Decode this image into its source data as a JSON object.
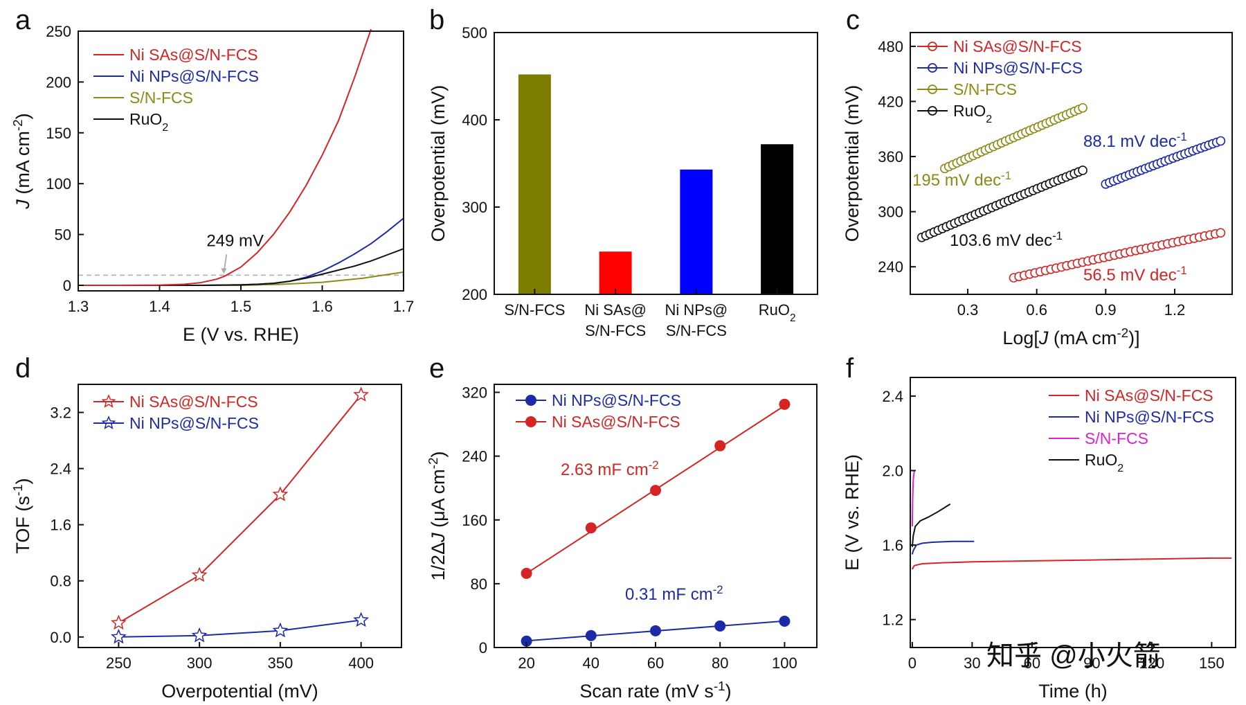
{
  "watermark": "知乎 @小火箭",
  "colors": {
    "red": "#d42424",
    "blue": "#1c2aa8",
    "olive": "#8c8a14",
    "black": "#111111",
    "magenta": "#e020d0",
    "gray": "#aaaaaa",
    "bar_olive": "#7c7c00",
    "bar_red": "#ff0000",
    "bar_blue": "#0000ff",
    "bar_black": "#000000"
  },
  "chart_data": [
    {
      "panel": "a",
      "type": "line",
      "xlabel": "E (V vs. RHE)",
      "ylabel": "J (mA cm-2)",
      "xlim": [
        1.3,
        1.7
      ],
      "ylim": [
        0,
        250
      ],
      "xticks": [
        1.3,
        1.4,
        1.5,
        1.6,
        1.7
      ],
      "yticks": [
        0,
        50,
        100,
        150,
        200,
        250
      ],
      "legend": "top-left",
      "annotation": {
        "text": "249 mV",
        "x": 1.479,
        "y": 10
      },
      "reference_line": {
        "y": 10,
        "style": "dashed"
      },
      "series": [
        {
          "name": "Ni SAs@S/N-FCS",
          "color": "red",
          "x": [
            1.3,
            1.35,
            1.4,
            1.43,
            1.45,
            1.47,
            1.48,
            1.5,
            1.52,
            1.54,
            1.56,
            1.58,
            1.6,
            1.62,
            1.64,
            1.66
          ],
          "y": [
            0,
            0,
            0.3,
            1,
            2.5,
            6,
            9,
            18,
            32,
            50,
            72,
            98,
            128,
            162,
            205,
            252
          ]
        },
        {
          "name": "Ni NPs@S/N-FCS",
          "color": "blue",
          "x": [
            1.3,
            1.45,
            1.5,
            1.52,
            1.54,
            1.56,
            1.58,
            1.6,
            1.62,
            1.64,
            1.66,
            1.68,
            1.7
          ],
          "y": [
            0,
            0,
            0.5,
            1,
            2,
            4,
            8,
            14,
            22,
            31,
            41,
            53,
            66
          ]
        },
        {
          "name": "S/N-FCS",
          "color": "olive",
          "x": [
            1.3,
            1.5,
            1.55,
            1.6,
            1.65,
            1.7
          ],
          "y": [
            0,
            0,
            1,
            3,
            7,
            13
          ]
        },
        {
          "name": "RuO2",
          "color": "black",
          "x": [
            1.3,
            1.45,
            1.5,
            1.52,
            1.54,
            1.56,
            1.58,
            1.6,
            1.62,
            1.64,
            1.66,
            1.68,
            1.7
          ],
          "y": [
            0,
            0,
            0.5,
            1,
            2,
            4,
            7,
            11,
            15,
            19,
            24,
            30,
            36
          ]
        }
      ]
    },
    {
      "panel": "b",
      "type": "bar",
      "ylabel": "Overpotential (mV)",
      "ylim": [
        200,
        500
      ],
      "yticks": [
        200,
        300,
        400,
        500
      ],
      "categories": [
        "S/N-FCS",
        "Ni SAs@\nS/N-FCS",
        "Ni NPs@\nS/N-FCS",
        "RuO2"
      ],
      "values": [
        452,
        249,
        343,
        372
      ],
      "bar_colors": [
        "bar_olive",
        "bar_red",
        "bar_blue",
        "bar_black"
      ]
    },
    {
      "panel": "c",
      "type": "scatter",
      "xlabel": "Log[J (mA cm-2)]",
      "ylabel": "Overpotential (mV)",
      "xlim": [
        0.05,
        1.45
      ],
      "ylim": [
        210,
        495
      ],
      "xticks": [
        0.3,
        0.6,
        0.9,
        1.2
      ],
      "yticks": [
        240,
        300,
        360,
        420,
        480
      ],
      "legend": "top-left",
      "series": [
        {
          "name": "Ni SAs@S/N-FCS",
          "color": "red",
          "x_range": [
            0.5,
            1.4
          ],
          "y_range": [
            228,
            277
          ],
          "points": 40,
          "slope_label": "56.5 mV dec-1"
        },
        {
          "name": "Ni NPs@S/N-FCS",
          "color": "blue",
          "x_range": [
            0.9,
            1.4
          ],
          "y_range": [
            330,
            377
          ],
          "points": 30,
          "slope_label": "88.1 mV dec-1"
        },
        {
          "name": "S/N-FCS",
          "color": "olive",
          "x_range": [
            0.2,
            0.8
          ],
          "y_range": [
            347,
            413
          ],
          "points": 35,
          "slope_label": "195 mV dec-1"
        },
        {
          "name": "RuO2",
          "color": "black",
          "x_range": [
            0.1,
            0.8
          ],
          "y_range": [
            272,
            345
          ],
          "points": 40,
          "slope_label": "103.6 mV dec-1"
        }
      ]
    },
    {
      "panel": "d",
      "type": "line",
      "xlabel": "Overpotential (mV)",
      "ylabel": "TOF (s-1)",
      "xlim": [
        225,
        425
      ],
      "ylim": [
        -0.15,
        3.6
      ],
      "xticks": [
        250,
        300,
        350,
        400
      ],
      "yticks": [
        0.0,
        0.8,
        1.6,
        2.4,
        3.2
      ],
      "legend": "top-left",
      "series": [
        {
          "name": "Ni SAs@S/N-FCS",
          "color": "red",
          "x": [
            250,
            300,
            350,
            400
          ],
          "y": [
            0.2,
            0.88,
            2.03,
            3.45
          ]
        },
        {
          "name": "Ni NPs@S/N-FCS",
          "color": "blue",
          "x": [
            250,
            300,
            350,
            400
          ],
          "y": [
            0.0,
            0.02,
            0.09,
            0.24
          ]
        }
      ]
    },
    {
      "panel": "e",
      "type": "scatter",
      "xlabel": "Scan rate (mV s-1)",
      "ylabel": "1/2ΔJ (μA cm-2)",
      "xlim": [
        10,
        110
      ],
      "ylim": [
        0,
        330
      ],
      "xticks": [
        20,
        40,
        60,
        80,
        100
      ],
      "yticks": [
        0,
        80,
        160,
        240,
        320
      ],
      "legend": "top-left",
      "series": [
        {
          "name": "Ni NPs@S/N-FCS",
          "color": "blue",
          "x": [
            20,
            40,
            60,
            80,
            100
          ],
          "y": [
            8,
            15,
            21,
            27,
            33
          ],
          "fit": [
            2.2,
            0.31
          ],
          "label": "0.31 mF cm-2"
        },
        {
          "name": "Ni SAs@S/N-FCS",
          "color": "red",
          "x": [
            20,
            40,
            60,
            80,
            100
          ],
          "y": [
            93,
            150,
            197,
            253,
            305
          ],
          "fit": [
            40.3,
            2.63
          ],
          "label": "2.63 mF cm-2"
        }
      ]
    },
    {
      "panel": "f",
      "type": "line",
      "xlabel": "Time (h)",
      "ylabel": "E (V vs. RHE)",
      "xlim": [
        -1,
        162
      ],
      "ylim": [
        1.05,
        2.5
      ],
      "xticks": [
        0,
        30,
        60,
        90,
        120,
        150
      ],
      "yticks": [
        1.2,
        1.6,
        2.0,
        2.4
      ],
      "legend": "top-right",
      "series": [
        {
          "name": "Ni SAs@S/N-FCS",
          "color": "red",
          "x": [
            0,
            1,
            5,
            15,
            30,
            60,
            90,
            120,
            150,
            160
          ],
          "y": [
            1.47,
            1.49,
            1.5,
            1.505,
            1.51,
            1.515,
            1.52,
            1.525,
            1.53,
            1.53
          ]
        },
        {
          "name": "Ni NPs@S/N-FCS",
          "color": "blue",
          "x": [
            0,
            0.5,
            2,
            5,
            10,
            20,
            31
          ],
          "y": [
            1.55,
            1.57,
            1.6,
            1.61,
            1.615,
            1.62,
            1.62
          ]
        },
        {
          "name": "S/N-FCS",
          "color": "magenta",
          "x": [
            0,
            0.2,
            0.5,
            1
          ],
          "y": [
            1.7,
            1.85,
            1.95,
            2.0
          ]
        },
        {
          "name": "RuO2",
          "color": "black",
          "x": [
            0,
            0.5,
            1.5,
            4,
            8,
            13,
            19
          ],
          "y": [
            1.59,
            1.65,
            1.7,
            1.73,
            1.75,
            1.78,
            1.82
          ]
        }
      ]
    }
  ]
}
